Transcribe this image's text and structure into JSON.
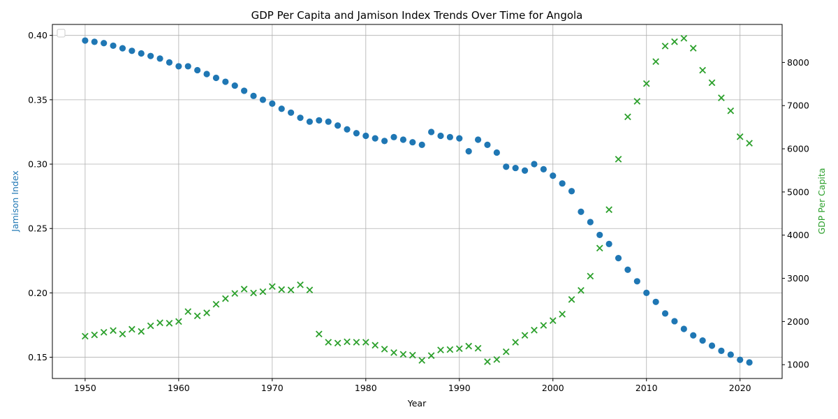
{
  "chart_data": {
    "type": "scatter",
    "title": "GDP Per Capita and Jamison Index Trends Over Time for Angola",
    "xlabel": "Year",
    "ylabel_left": "Jamison Index",
    "ylabel_right": "GDP Per Capita",
    "xlim": [
      1946.5,
      2024.5
    ],
    "ylim_left": [
      0.1335,
      0.4085
    ],
    "ylim_right": [
      680,
      8880
    ],
    "x_ticks": [
      1950,
      1960,
      1970,
      1980,
      1990,
      2000,
      2010,
      2020
    ],
    "y_ticks_left": [
      "0.15",
      "0.20",
      "0.25",
      "0.30",
      "0.35",
      "0.40"
    ],
    "y_ticks_left_values": [
      0.15,
      0.2,
      0.25,
      0.3,
      0.35,
      0.4
    ],
    "y_ticks_right": [
      "1000",
      "2000",
      "3000",
      "4000",
      "5000",
      "6000",
      "7000",
      "8000"
    ],
    "y_ticks_right_values": [
      1000,
      2000,
      3000,
      4000,
      5000,
      6000,
      7000,
      8000
    ],
    "grid": true,
    "legend": "top-left, empty",
    "colors": {
      "jamison": "#1f77b4",
      "gdp": "#2ca02c"
    },
    "series": [
      {
        "marker": "circle",
        "axis": "left",
        "x": [
          1950,
          1951,
          1952,
          1953,
          1954,
          1955,
          1956,
          1957,
          1958,
          1959,
          1960,
          1961,
          1962,
          1963,
          1964,
          1965,
          1966,
          1967,
          1968,
          1969,
          1970,
          1971,
          1972,
          1973,
          1974,
          1975,
          1976,
          1977,
          1978,
          1979,
          1980,
          1981,
          1982,
          1983,
          1984,
          1985,
          1986,
          1987,
          1988,
          1989,
          1990,
          1991,
          1992,
          1993,
          1994,
          1995,
          1996,
          1997,
          1998,
          1999,
          2000,
          2001,
          2002,
          2003,
          2004,
          2005,
          2006,
          2007,
          2008,
          2009,
          2010,
          2011,
          2012,
          2013,
          2014,
          2015,
          2016,
          2017,
          2018,
          2019,
          2020,
          2021
        ],
        "values": [
          0.396,
          0.395,
          0.394,
          0.392,
          0.39,
          0.388,
          0.386,
          0.384,
          0.382,
          0.379,
          0.376,
          0.376,
          0.373,
          0.37,
          0.367,
          0.364,
          0.361,
          0.357,
          0.353,
          0.35,
          0.347,
          0.343,
          0.34,
          0.336,
          0.333,
          0.334,
          0.333,
          0.33,
          0.327,
          0.324,
          0.322,
          0.32,
          0.318,
          0.321,
          0.319,
          0.317,
          0.315,
          0.325,
          0.322,
          0.321,
          0.32,
          0.31,
          0.319,
          0.315,
          0.309,
          0.298,
          0.297,
          0.295,
          0.3,
          0.296,
          0.291,
          0.285,
          0.279,
          0.263,
          0.255,
          0.245,
          0.238,
          0.227,
          0.218,
          0.209,
          0.2,
          0.193,
          0.184,
          0.178,
          0.172,
          0.167,
          0.163,
          0.159,
          0.155,
          0.152,
          0.148,
          0.146
        ]
      },
      {
        "marker": "x",
        "axis": "right",
        "x": [
          1950,
          1951,
          1952,
          1953,
          1954,
          1955,
          1956,
          1957,
          1958,
          1959,
          1960,
          1961,
          1962,
          1963,
          1964,
          1965,
          1966,
          1967,
          1968,
          1969,
          1970,
          1971,
          1972,
          1973,
          1974,
          1975,
          1976,
          1977,
          1978,
          1979,
          1980,
          1981,
          1982,
          1983,
          1984,
          1985,
          1986,
          1987,
          1988,
          1989,
          1990,
          1991,
          1992,
          1993,
          1994,
          1995,
          1996,
          1997,
          1998,
          1999,
          2000,
          2001,
          2002,
          2003,
          2004,
          2005,
          2006,
          2007,
          2008,
          2009,
          2010,
          2011,
          2012,
          2013,
          2014,
          2015,
          2016,
          2017,
          2018,
          2019,
          2020,
          2021
        ],
        "values": [
          1660,
          1690,
          1750,
          1790,
          1710,
          1820,
          1770,
          1900,
          1970,
          1960,
          2000,
          2230,
          2130,
          2200,
          2400,
          2530,
          2650,
          2750,
          2660,
          2690,
          2810,
          2740,
          2730,
          2850,
          2730,
          1710,
          1520,
          1500,
          1530,
          1520,
          1520,
          1450,
          1360,
          1280,
          1240,
          1220,
          1100,
          1210,
          1340,
          1350,
          1370,
          1430,
          1380,
          1070,
          1120,
          1300,
          1520,
          1680,
          1800,
          1910,
          2020,
          2170,
          2510,
          2720,
          3050,
          3700,
          4590,
          5760,
          6740,
          7100,
          7510,
          8020,
          8380,
          8480,
          8560,
          8330,
          7820,
          7530,
          7180,
          6880,
          6280,
          6130
        ]
      }
    ]
  }
}
